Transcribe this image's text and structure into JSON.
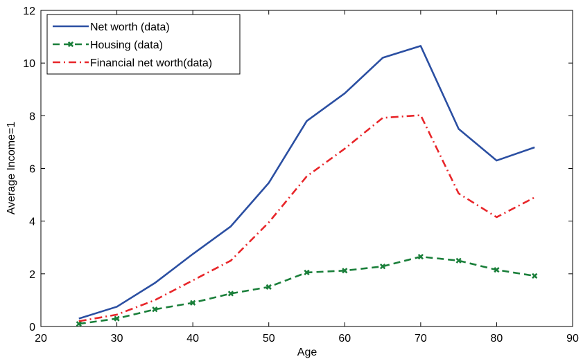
{
  "chart_data": {
    "type": "line",
    "xlabel": "Age",
    "ylabel": "Average Income=1",
    "xlim": [
      20,
      90
    ],
    "ylim": [
      0,
      12
    ],
    "xticks": [
      20,
      30,
      40,
      50,
      60,
      70,
      80,
      90
    ],
    "yticks": [
      0,
      2,
      4,
      6,
      8,
      10,
      12
    ],
    "grid": false,
    "legend_position": "top-left",
    "x": [
      25,
      30,
      35,
      40,
      45,
      50,
      55,
      60,
      65,
      70,
      75,
      80,
      85
    ],
    "series": [
      {
        "name": "Net worth (data)",
        "color": "#2b4fa2",
        "line_style": "solid",
        "marker": "none",
        "values": [
          0.3,
          0.75,
          1.65,
          2.75,
          3.8,
          5.45,
          7.8,
          8.85,
          10.2,
          10.65,
          7.5,
          6.3,
          6.8
        ]
      },
      {
        "name": "Housing (data)",
        "color": "#1a7f3a",
        "line_style": "dashed",
        "marker": "x",
        "values": [
          0.1,
          0.3,
          0.65,
          0.9,
          1.25,
          1.5,
          2.05,
          2.12,
          2.28,
          2.65,
          2.5,
          2.15,
          1.92
        ]
      },
      {
        "name": "Financial net worth(data)",
        "color": "#e8262a",
        "line_style": "dash-dot",
        "marker": "none",
        "values": [
          0.2,
          0.45,
          1.0,
          1.75,
          2.5,
          3.95,
          5.7,
          6.75,
          7.92,
          8.02,
          5.05,
          4.15,
          4.9
        ]
      }
    ]
  }
}
